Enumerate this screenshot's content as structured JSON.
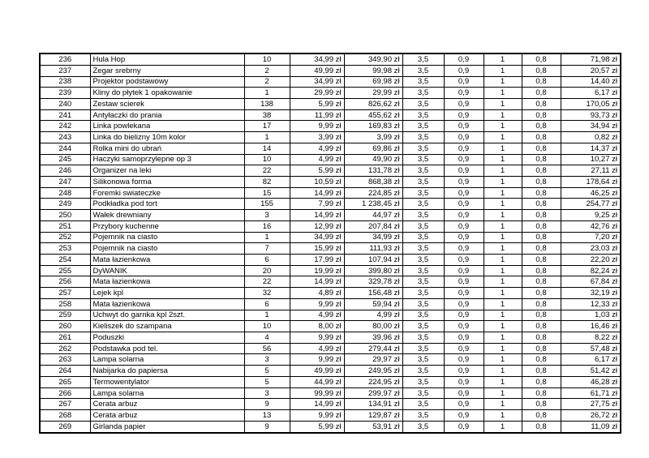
{
  "page": {
    "background_color": "#ffffff",
    "text_color": "#000000",
    "border_color": "#000000"
  },
  "table": {
    "row_count": 34,
    "first_row_number": "236",
    "last_row_number": "269",
    "currency_suffix": "zł",
    "rows": [
      [
        "236",
        "Hula Hop",
        "10",
        "34,99 zł",
        "349,90 zł",
        "3,5",
        "0,9",
        "1",
        "0,8",
        "71,98 zł"
      ],
      [
        "237",
        "Zegar srebrny",
        "2",
        "49,99 zł",
        "99,98 zł",
        "3,5",
        "0,9",
        "1",
        "0,8",
        "20,57 zł"
      ],
      [
        "238",
        "Projektor podstawowy",
        "2",
        "34,99 zł",
        "69,98 zł",
        "3,5",
        "0,9",
        "1",
        "0,8",
        "14,40 zł"
      ],
      [
        "239",
        "Kliny do płytek 1 opakowanie",
        "1",
        "29,99 zł",
        "29,99 zł",
        "3,5",
        "0,9",
        "1",
        "0,8",
        "6,17 zł"
      ],
      [
        "240",
        "Zestaw scierek",
        "138",
        "5,99 zł",
        "826,62 zł",
        "3,5",
        "0,9",
        "1",
        "0,8",
        "170,05 zł"
      ],
      [
        "241",
        "Antyłaczki do prania",
        "38",
        "11,99 zł",
        "455,62 zł",
        "3,5",
        "0,9",
        "1",
        "0,8",
        "93,73 zł"
      ],
      [
        "242",
        "Linka powlekana",
        "17",
        "9,99 zł",
        "169,83 zł",
        "3,5",
        "0,9",
        "1",
        "0,8",
        "34,94 zł"
      ],
      [
        "243",
        "Linka do bielizny 10m kolor",
        "1",
        "3,99 zł",
        "3,99 zł",
        "3,5",
        "0,9",
        "1",
        "0,8",
        "0,82 zł"
      ],
      [
        "244",
        "Rolka mini do ubrań",
        "14",
        "4,99 zł",
        "69,86 zł",
        "3,5",
        "0,9",
        "1",
        "0,8",
        "14,37 zł"
      ],
      [
        "245",
        "Haczyki samoprzylepne op 3",
        "10",
        "4,99 zł",
        "49,90 zł",
        "3,5",
        "0,9",
        "1",
        "0,8",
        "10,27 zł"
      ],
      [
        "246",
        "Organizer na leki",
        "22",
        "5,99 zł",
        "131,78 zł",
        "3,5",
        "0,9",
        "1",
        "0,8",
        "27,11 zł"
      ],
      [
        "247",
        "Silikonowa forma",
        "82",
        "10,59 zł",
        "868,38 zł",
        "3,5",
        "0,9",
        "1",
        "0,8",
        "178,64 zł"
      ],
      [
        "248",
        "Foremki swiateczke",
        "15",
        "14,99 zł",
        "224,85 zł",
        "3,5",
        "0,9",
        "1",
        "0,8",
        "46,25 zł"
      ],
      [
        "249",
        "Podkładka pod tort",
        "155",
        "7,99 zł",
        "1 238,45 zł",
        "3,5",
        "0,9",
        "1",
        "0,8",
        "254,77 zł"
      ],
      [
        "250",
        "Wałek drewniany",
        "3",
        "14,99 zł",
        "44,97 zł",
        "3,5",
        "0,9",
        "1",
        "0,8",
        "9,25 zł"
      ],
      [
        "251",
        "Przybory kuchenne",
        "16",
        "12,99 zł",
        "207,84 zł",
        "3,5",
        "0,9",
        "1",
        "0,8",
        "42,76 zł"
      ],
      [
        "252",
        "Pojemnik na ciasto",
        "1",
        "34,99 zł",
        "34,99 zł",
        "3,5",
        "0,9",
        "1",
        "0,8",
        "7,20 zł"
      ],
      [
        "253",
        "Pojemnik na ciasto",
        "7",
        "15,99 zł",
        "111,93 zł",
        "3,5",
        "0,9",
        "1",
        "0,8",
        "23,03 zł"
      ],
      [
        "254",
        "Mata łazienkowa",
        "6",
        "17,99 zł",
        "107,94 zł",
        "3,5",
        "0,9",
        "1",
        "0,8",
        "22,20 zł"
      ],
      [
        "255",
        "DyWANIK",
        "20",
        "19,99 zł",
        "399,80 zł",
        "3,5",
        "0,9",
        "1",
        "0,8",
        "82,24 zł"
      ],
      [
        "256",
        "Mata łazienkowa",
        "22",
        "14,99 zł",
        "329,78 zł",
        "3,5",
        "0,9",
        "1",
        "0,8",
        "67,84 zł"
      ],
      [
        "257",
        "Lejek kpl",
        "32",
        "4,89 zł",
        "156,48 zł",
        "3,5",
        "0,9",
        "1",
        "0,8",
        "32,19 zł"
      ],
      [
        "258",
        "Mata łazienkowa",
        "6",
        "9,99 zł",
        "59,94 zł",
        "3,5",
        "0,9",
        "1",
        "0,8",
        "12,33 zł"
      ],
      [
        "259",
        "Uchwyt do garnka kpl 2szt.",
        "1",
        "4,99 zł",
        "4,99 zł",
        "3,5",
        "0,9",
        "1",
        "0,8",
        "1,03 zł"
      ],
      [
        "260",
        "Kieliszek do szampana",
        "10",
        "8,00 zł",
        "80,00 zł",
        "3,5",
        "0,9",
        "1",
        "0,8",
        "16,46 zł"
      ],
      [
        "261",
        "Poduszki",
        "4",
        "9,99 zł",
        "39,96 zł",
        "3,5",
        "0,9",
        "1",
        "0,8",
        "8,22 zł"
      ],
      [
        "262",
        "Podstawka pod tel.",
        "56",
        "4,99 zł",
        "279,44 zł",
        "3,5",
        "0,9",
        "1",
        "0,8",
        "57,48 zł"
      ],
      [
        "263",
        "Lampa solarna",
        "3",
        "9,99 zł",
        "29,97 zł",
        "3,5",
        "0,9",
        "1",
        "0,8",
        "6,17 zł"
      ],
      [
        "264",
        "Nabijarka do papiersa",
        "5",
        "49,99 zł",
        "249,95 zł",
        "3,5",
        "0,9",
        "1",
        "0,8",
        "51,42 zł"
      ],
      [
        "265",
        "Termowentylator",
        "5",
        "44,99 zł",
        "224,95 zł",
        "3,5",
        "0,9",
        "1",
        "0,8",
        "46,28 zł"
      ],
      [
        "266",
        "Lampa solarna",
        "3",
        "99,99 zł",
        "299,97 zł",
        "3,5",
        "0,9",
        "1",
        "0,8",
        "61,71 zł"
      ],
      [
        "267",
        "Cerata arbuz",
        "9",
        "14,99 zł",
        "134,91 zł",
        "3,5",
        "0,9",
        "1",
        "0,8",
        "27,75 zł"
      ],
      [
        "268",
        "Cerata arbuz",
        "13",
        "9,99 zł",
        "129,87 zł",
        "3,5",
        "0,9",
        "1",
        "0,8",
        "26,72 zł"
      ],
      [
        "269",
        "Girlanda papier",
        "9",
        "5,99 zł",
        "53,91 zł",
        "3,5",
        "0,9",
        "1",
        "0,8",
        "11,09 zł"
      ]
    ]
  }
}
